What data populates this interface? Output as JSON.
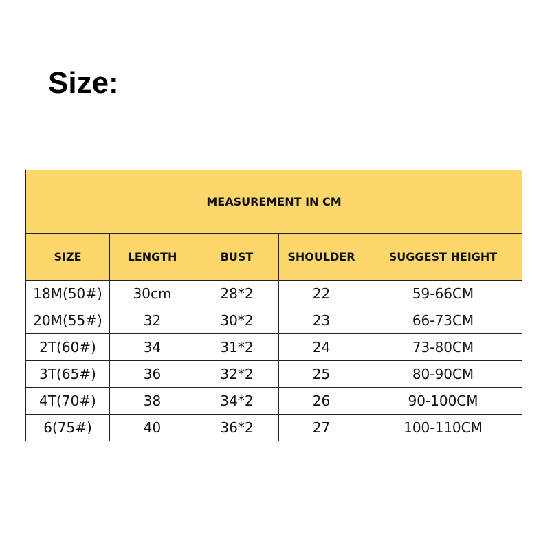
{
  "header": {
    "title": "Size:"
  },
  "table": {
    "caption": "MEASUREMENT IN CM",
    "columns": [
      "SIZE",
      "LENGTH",
      "BUST",
      "SHOULDER",
      "SUGGEST HEIGHT"
    ],
    "rows": [
      [
        "18M(50#)",
        "30cm",
        "28*2",
        "22",
        "59-66CM"
      ],
      [
        "20M(55#)",
        "32",
        "30*2",
        "23",
        "66-73CM"
      ],
      [
        "2T(60#)",
        "34",
        "31*2",
        "24",
        "73-80CM"
      ],
      [
        "3T(65#)",
        "36",
        "32*2",
        "25",
        "80-90CM"
      ],
      [
        "4T(70#)",
        "38",
        "34*2",
        "26",
        "90-100CM"
      ],
      [
        "6(75#)",
        "40",
        "36*2",
        "27",
        "100-110CM"
      ]
    ]
  }
}
